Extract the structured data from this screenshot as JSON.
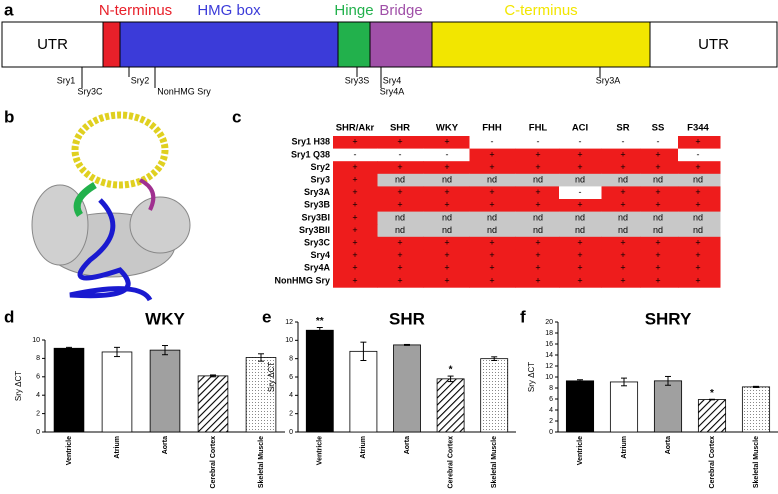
{
  "gene_map": {
    "panel_label": "a",
    "domains": [
      {
        "label": "UTR",
        "color": "#ffffff"
      },
      {
        "label": "N-terminus",
        "color": "#e8202a"
      },
      {
        "label": "HMG box",
        "color": "#3b3bd9"
      },
      {
        "label": "Hinge",
        "color": "#22b14c"
      },
      {
        "label": "Bridge",
        "color": "#a050a8"
      },
      {
        "label": "C-terminus",
        "color": "#f2e600"
      },
      {
        "label": "UTR",
        "color": "#ffffff"
      }
    ],
    "markers": [
      "Sry1",
      "Sry3C",
      "Sry2",
      "NonHMG Sry",
      "Sry3S",
      "Sry4",
      "Sry4A",
      "Sry3A"
    ]
  },
  "structure": {
    "panel_label": "b"
  },
  "table": {
    "panel_label": "c",
    "columns": [
      "SHR/Akr",
      "SHR",
      "WKY",
      "FHH",
      "FHL",
      "ACI",
      "SR",
      "SS",
      "F344"
    ],
    "rows": [
      {
        "label": "Sry1 H38",
        "cells": [
          "+",
          "+",
          "+",
          "-",
          "-",
          "-",
          "-",
          "-",
          "+"
        ]
      },
      {
        "label": "Sry1 Q38",
        "cells": [
          "-",
          "-",
          "-",
          "+",
          "+",
          "+",
          "+",
          "+",
          "-"
        ]
      },
      {
        "label": "Sry2",
        "cells": [
          "+",
          "+",
          "+",
          "+",
          "+",
          "+",
          "+",
          "+",
          "+"
        ]
      },
      {
        "label": "Sry3",
        "cells": [
          "+",
          "nd",
          "nd",
          "nd",
          "nd",
          "nd",
          "nd",
          "nd",
          "nd"
        ]
      },
      {
        "label": "Sry3A",
        "cells": [
          "+",
          "+",
          "+",
          "+",
          "+",
          "-",
          "+",
          "+",
          "+"
        ]
      },
      {
        "label": "Sry3B",
        "cells": [
          "+",
          "+",
          "+",
          "+",
          "+",
          "+",
          "+",
          "+",
          "+"
        ]
      },
      {
        "label": "Sry3BI",
        "cells": [
          "+",
          "nd",
          "nd",
          "nd",
          "nd",
          "nd",
          "nd",
          "nd",
          "nd"
        ]
      },
      {
        "label": "Sry3BII",
        "cells": [
          "+",
          "nd",
          "nd",
          "nd",
          "nd",
          "nd",
          "nd",
          "nd",
          "nd"
        ]
      },
      {
        "label": "Sry3C",
        "cells": [
          "+",
          "+",
          "+",
          "+",
          "+",
          "+",
          "+",
          "+",
          "+"
        ]
      },
      {
        "label": "Sry4",
        "cells": [
          "+",
          "+",
          "+",
          "+",
          "+",
          "+",
          "+",
          "+",
          "+"
        ]
      },
      {
        "label": "Sry4A",
        "cells": [
          "+",
          "+",
          "+",
          "+",
          "+",
          "+",
          "+",
          "+",
          "+"
        ]
      },
      {
        "label": "NonHMG Sry",
        "cells": [
          "+",
          "+",
          "+",
          "+",
          "+",
          "+",
          "+",
          "+",
          "+"
        ]
      }
    ],
    "cell_colors": {
      "+": "#ee1c1c",
      "-": "#ffffff",
      "nd": "#c8c8c8"
    }
  },
  "chart_data": [
    {
      "type": "bar",
      "panel_label": "d",
      "title": "WKY",
      "ylabel": "Sry ΔCT",
      "categories": [
        "Ventricle",
        "Atrium",
        "Aorta",
        "Cerebral Cortex",
        "Skeletal Muscle"
      ],
      "values": [
        9.1,
        8.7,
        8.9,
        6.1,
        8.1
      ],
      "errors": [
        0.1,
        0.5,
        0.5,
        0.1,
        0.4
      ],
      "significance": [
        null,
        null,
        null,
        null,
        null
      ],
      "fills": [
        "#000000",
        "#ffffff",
        "#a0a0a0",
        "hatch",
        "dots"
      ],
      "ylim": [
        0,
        10
      ],
      "yticks": [
        0,
        2,
        4,
        6,
        8,
        10
      ]
    },
    {
      "type": "bar",
      "panel_label": "e",
      "title": "SHR",
      "ylabel": "Sry ΔCT",
      "categories": [
        "Ventricle",
        "Atrium",
        "Aorta",
        "Cerebral Cortex",
        "Skeletal Muscle"
      ],
      "values": [
        11.1,
        8.8,
        9.5,
        5.8,
        8.0
      ],
      "errors": [
        0.3,
        1.0,
        0.05,
        0.3,
        0.2
      ],
      "significance": [
        "**",
        null,
        null,
        "*",
        null
      ],
      "fills": [
        "#000000",
        "#ffffff",
        "#a0a0a0",
        "hatch",
        "dots"
      ],
      "ylim": [
        0,
        12
      ],
      "yticks": [
        0,
        2,
        4,
        6,
        8,
        10,
        12
      ]
    },
    {
      "type": "bar",
      "panel_label": "f",
      "title": "SHRY",
      "ylabel": "Sry ΔCT",
      "categories": [
        "Ventricle",
        "Atrium",
        "Aorta",
        "Cerebral Cortex",
        "Skeletal Muscle"
      ],
      "values": [
        9.3,
        9.1,
        9.3,
        5.9,
        8.2
      ],
      "errors": [
        0.2,
        0.7,
        0.8,
        0.05,
        0.1
      ],
      "significance": [
        null,
        null,
        null,
        "*",
        null
      ],
      "fills": [
        "#000000",
        "#ffffff",
        "#a0a0a0",
        "hatch",
        "dots"
      ],
      "ylim": [
        0,
        20
      ],
      "yticks": [
        0,
        2,
        4,
        6,
        8,
        10,
        12,
        14,
        16,
        18,
        20
      ]
    }
  ]
}
